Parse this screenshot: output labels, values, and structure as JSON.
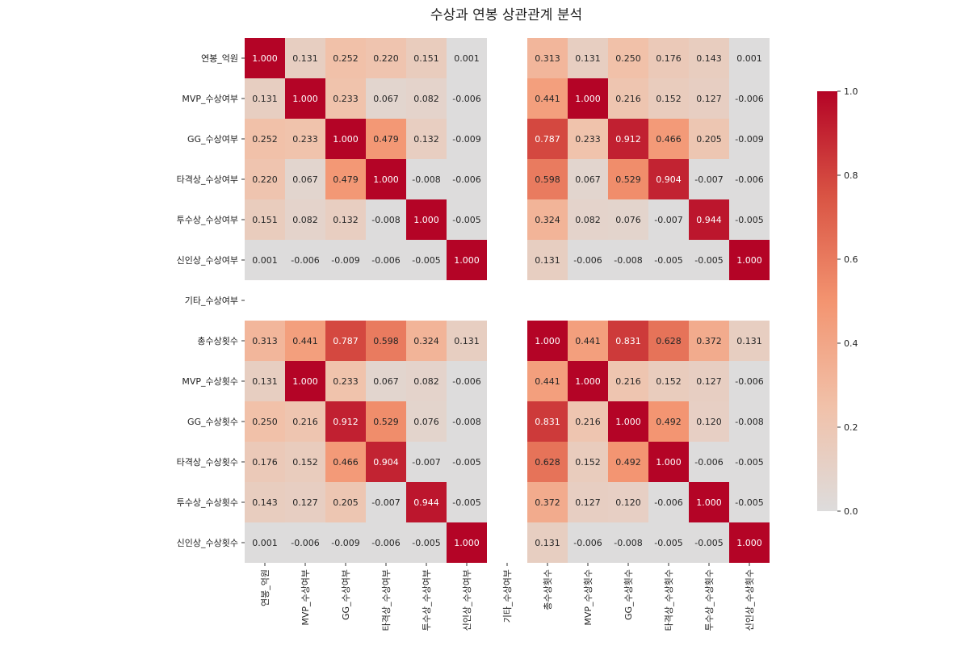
{
  "chart_data": {
    "type": "heatmap",
    "title": "수상과 연봉 상관관계 분석",
    "rows": [
      "연봉_억원",
      "MVP_수상여부",
      "GG_수상여부",
      "타격상_수상여부",
      "투수상_수상여부",
      "신인상_수상여부",
      "기타_수상여부",
      "총수상횟수",
      "MVP_수상횟수",
      "GG_수상횟수",
      "타격상_수상횟수",
      "투수상_수상횟수",
      "신인상_수상횟수"
    ],
    "columns": [
      "연봉_억원",
      "MVP_수상여부",
      "GG_수상여부",
      "타격상_수상여부",
      "투수상_수상여부",
      "신인상_수상여부",
      "기타_수상여부",
      "총수상횟수",
      "MVP_수상횟수",
      "GG_수상횟수",
      "타격상_수상횟수",
      "투수상_수상횟수",
      "신인상_수상횟수"
    ],
    "values": [
      [
        "1.000",
        "0.131",
        "0.252",
        "0.220",
        "0.151",
        "0.001",
        null,
        "0.313",
        "0.131",
        "0.250",
        "0.176",
        "0.143",
        "0.001"
      ],
      [
        "0.131",
        "1.000",
        "0.233",
        "0.067",
        "0.082",
        "-0.006",
        null,
        "0.441",
        "1.000",
        "0.216",
        "0.152",
        "0.127",
        "-0.006"
      ],
      [
        "0.252",
        "0.233",
        "1.000",
        "0.479",
        "0.132",
        "-0.009",
        null,
        "0.787",
        "0.233",
        "0.912",
        "0.466",
        "0.205",
        "-0.009"
      ],
      [
        "0.220",
        "0.067",
        "0.479",
        "1.000",
        "-0.008",
        "-0.006",
        null,
        "0.598",
        "0.067",
        "0.529",
        "0.904",
        "-0.007",
        "-0.006"
      ],
      [
        "0.151",
        "0.082",
        "0.132",
        "-0.008",
        "1.000",
        "-0.005",
        null,
        "0.324",
        "0.082",
        "0.076",
        "-0.007",
        "0.944",
        "-0.005"
      ],
      [
        "0.001",
        "-0.006",
        "-0.009",
        "-0.006",
        "-0.005",
        "1.000",
        null,
        "0.131",
        "-0.006",
        "-0.008",
        "-0.005",
        "-0.005",
        "1.000"
      ],
      [
        null,
        null,
        null,
        null,
        null,
        null,
        null,
        null,
        null,
        null,
        null,
        null,
        null
      ],
      [
        "0.313",
        "0.441",
        "0.787",
        "0.598",
        "0.324",
        "0.131",
        null,
        "1.000",
        "0.441",
        "0.831",
        "0.628",
        "0.372",
        "0.131"
      ],
      [
        "0.131",
        "1.000",
        "0.233",
        "0.067",
        "0.082",
        "-0.006",
        null,
        "0.441",
        "1.000",
        "0.216",
        "0.152",
        "0.127",
        "-0.006"
      ],
      [
        "0.250",
        "0.216",
        "0.912",
        "0.529",
        "0.076",
        "-0.008",
        null,
        "0.831",
        "0.216",
        "1.000",
        "0.492",
        "0.120",
        "-0.008"
      ],
      [
        "0.176",
        "0.152",
        "0.466",
        "0.904",
        "-0.007",
        "-0.005",
        null,
        "0.628",
        "0.152",
        "0.492",
        "1.000",
        "-0.006",
        "-0.005"
      ],
      [
        "0.143",
        "0.127",
        "0.205",
        "-0.007",
        "0.944",
        "-0.005",
        null,
        "0.372",
        "0.127",
        "0.120",
        "-0.006",
        "1.000",
        "-0.005"
      ],
      [
        "0.001",
        "-0.006",
        "-0.009",
        "-0.006",
        "-0.005",
        "1.000",
        null,
        "0.131",
        "-0.006",
        "-0.008",
        "-0.005",
        "-0.005",
        "1.000"
      ]
    ],
    "colormap": "coolwarm",
    "vmin": 0.0,
    "vmax": 1.0,
    "colorbar": {
      "ticks": [
        "0.0",
        "0.2",
        "0.4",
        "0.6",
        "0.8",
        "1.0"
      ]
    },
    "annotate": true,
    "grid": false,
    "legend": "right"
  }
}
